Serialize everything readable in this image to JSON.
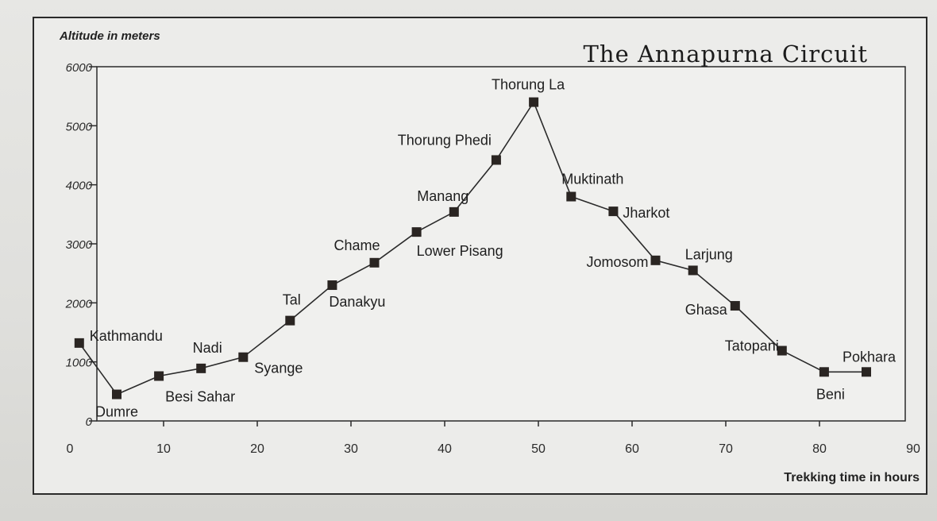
{
  "chart_data": {
    "type": "line",
    "title": "The Annapurna Circuit",
    "ylabel": "Altitude in meters",
    "xlabel": "Trekking time in hours",
    "xlim": [
      0,
      90
    ],
    "ylim": [
      0,
      6000
    ],
    "xticks": [
      "0",
      "10",
      "20",
      "30",
      "40",
      "50",
      "60",
      "70",
      "80",
      "90"
    ],
    "yticks": [
      "0",
      "1000",
      "2000",
      "3000",
      "4000",
      "5000",
      "6000"
    ],
    "grid": false,
    "points": [
      {
        "name": "Kathmandu",
        "x": 1,
        "y": 1320
      },
      {
        "name": "Dumre",
        "x": 5,
        "y": 450
      },
      {
        "name": "Besi Sahar",
        "x": 9.5,
        "y": 760
      },
      {
        "name": "Nadi",
        "x": 14,
        "y": 890
      },
      {
        "name": "Syange",
        "x": 18.5,
        "y": 1080
      },
      {
        "name": "Tal",
        "x": 23.5,
        "y": 1700
      },
      {
        "name": "Danakyu",
        "x": 28,
        "y": 2300
      },
      {
        "name": "Chame",
        "x": 32.5,
        "y": 2680
      },
      {
        "name": "Lower Pisang",
        "x": 37,
        "y": 3200
      },
      {
        "name": "Manang",
        "x": 41,
        "y": 3540
      },
      {
        "name": "Thorung Phedi",
        "x": 45.5,
        "y": 4420
      },
      {
        "name": "Thorung La",
        "x": 49.5,
        "y": 5400
      },
      {
        "name": "Muktinath",
        "x": 53.5,
        "y": 3800
      },
      {
        "name": "Jharkot",
        "x": 58,
        "y": 3550
      },
      {
        "name": "Jomosom",
        "x": 62.5,
        "y": 2720
      },
      {
        "name": "Larjung",
        "x": 66.5,
        "y": 2550
      },
      {
        "name": "Ghasa",
        "x": 71,
        "y": 1950
      },
      {
        "name": "Tatopani",
        "x": 76,
        "y": 1190
      },
      {
        "name": "Beni",
        "x": 80.5,
        "y": 830
      },
      {
        "name": "Pokhara",
        "x": 85,
        "y": 830
      }
    ]
  }
}
